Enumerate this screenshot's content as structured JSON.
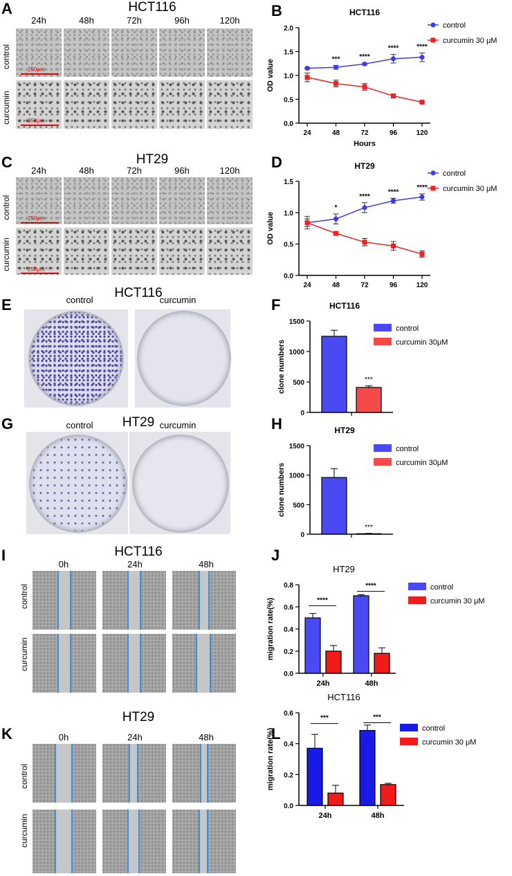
{
  "panels": {
    "A": {
      "letter": "A",
      "title": "HCT116",
      "times": [
        "24h",
        "48h",
        "72h",
        "96h",
        "120h"
      ],
      "rows": [
        "control",
        "curcumin"
      ],
      "scale": "250μm"
    },
    "C": {
      "letter": "C",
      "title": "HT29",
      "times": [
        "24h",
        "48h",
        "72h",
        "96h",
        "120h"
      ],
      "rows": [
        "control",
        "curcumin"
      ],
      "scale": "250μm"
    },
    "E": {
      "letter": "E",
      "title": "HCT116",
      "labels": [
        "control",
        "curcumin"
      ]
    },
    "G": {
      "letter": "G",
      "title": "HT29",
      "labels": [
        "control",
        "curcumin"
      ]
    },
    "I": {
      "letter": "I",
      "title": "HCT116",
      "times": [
        "0h",
        "24h",
        "48h"
      ],
      "rows": [
        "control",
        "curcumin"
      ]
    },
    "K": {
      "letter": "K",
      "title": "HT29",
      "times": [
        "0h",
        "24h",
        "48h"
      ],
      "rows": [
        "control",
        "curcumin"
      ]
    }
  },
  "chart_data": [
    {
      "id": "B",
      "letter": "B",
      "type": "line",
      "title": "HCT116",
      "xlabel": "Hours",
      "ylabel": "OD value",
      "x": [
        24,
        48,
        72,
        96,
        120
      ],
      "ylim": [
        0,
        2.0
      ],
      "yticks": [
        0.0,
        0.5,
        1.0,
        1.5,
        2.0
      ],
      "yfmt": 1,
      "series": [
        {
          "name": "control",
          "color": "#3a3af0",
          "marker": "circle",
          "values": [
            1.15,
            1.17,
            1.24,
            1.35,
            1.38
          ],
          "err": [
            0.02,
            0.04,
            0.02,
            0.09,
            0.09
          ]
        },
        {
          "name": "curcumin 30 μM",
          "color": "#f02020",
          "marker": "square",
          "values": [
            0.96,
            0.83,
            0.76,
            0.57,
            0.44
          ],
          "err": [
            0.09,
            0.07,
            0.07,
            0.04,
            0.02
          ]
        }
      ],
      "annotations": [
        {
          "x": 48,
          "text": "***"
        },
        {
          "x": 72,
          "text": "****"
        },
        {
          "x": 96,
          "text": "****"
        },
        {
          "x": 120,
          "text": "****"
        }
      ],
      "legend": "right"
    },
    {
      "id": "D",
      "letter": "D",
      "type": "line",
      "title": "HT29",
      "xlabel": "",
      "ylabel": "OD value",
      "x": [
        24,
        48,
        72,
        96,
        120
      ],
      "ylim": [
        0,
        1.5
      ],
      "yticks": [
        0.0,
        0.5,
        1.0,
        1.5
      ],
      "yfmt": 1,
      "series": [
        {
          "name": "control",
          "color": "#3a3af0",
          "marker": "circle",
          "values": [
            0.84,
            0.9,
            1.08,
            1.19,
            1.25
          ],
          "err": [
            0.1,
            0.08,
            0.08,
            0.04,
            0.05
          ]
        },
        {
          "name": "curcumin 30 μM",
          "color": "#f02020",
          "marker": "square",
          "values": [
            0.84,
            0.67,
            0.53,
            0.47,
            0.34
          ],
          "err": [
            0.06,
            0.02,
            0.06,
            0.07,
            0.05
          ]
        }
      ],
      "annotations": [
        {
          "x": 48,
          "text": "*"
        },
        {
          "x": 72,
          "text": "****"
        },
        {
          "x": 96,
          "text": "****"
        },
        {
          "x": 120,
          "text": "****"
        }
      ],
      "legend": "right"
    },
    {
      "id": "F",
      "letter": "F",
      "type": "bar",
      "title": "HCT116",
      "ylabel": "clone numbers",
      "categories": [
        ""
      ],
      "ylim": [
        0,
        1500
      ],
      "yticks": [
        0,
        500,
        1000,
        1500
      ],
      "yfmt": 0,
      "series": [
        {
          "name": "control",
          "color": "#4a4af5",
          "values": [
            1250
          ],
          "err": [
            100
          ]
        },
        {
          "name": "curcumin 30μM",
          "color": "#f54a4a",
          "values": [
            410
          ],
          "err": [
            25
          ]
        }
      ],
      "annotations": [
        {
          "series": 1,
          "cat": 0,
          "text": "***"
        }
      ],
      "legend": "right"
    },
    {
      "id": "H",
      "letter": "H",
      "type": "bar",
      "title": "HT29",
      "ylabel": "clone numbers",
      "categories": [
        ""
      ],
      "ylim": [
        0,
        1500
      ],
      "yticks": [
        0,
        500,
        1000,
        1500
      ],
      "yfmt": 0,
      "series": [
        {
          "name": "control",
          "color": "#4a4af5",
          "values": [
            960
          ],
          "err": [
            150
          ]
        },
        {
          "name": "curcumin 30μM",
          "color": "#f54a4a",
          "values": [
            8
          ],
          "err": [
            6
          ]
        }
      ],
      "annotations": [
        {
          "series": 1,
          "cat": 0,
          "text": "***"
        }
      ],
      "legend": "right"
    },
    {
      "id": "J",
      "letter": "J",
      "type": "bar",
      "title": "HT29",
      "ylabel": "migration rate(%)",
      "categories": [
        "24h",
        "48h"
      ],
      "ylim": [
        0,
        0.8
      ],
      "yticks": [
        0.0,
        0.2,
        0.4,
        0.6,
        0.8
      ],
      "yfmt": 1,
      "series": [
        {
          "name": "control",
          "color": "#4a4af5",
          "values": [
            0.5,
            0.7
          ],
          "err": [
            0.04,
            0.01
          ]
        },
        {
          "name": "curcumin 30 μM",
          "color": "#f21b1b",
          "values": [
            0.2,
            0.18
          ],
          "err": [
            0.05,
            0.05
          ]
        }
      ],
      "brackets": [
        {
          "cat": 0,
          "text": "****",
          "y": 0.61
        },
        {
          "cat": 1,
          "text": "****",
          "y": 0.74
        }
      ],
      "legend": "right"
    },
    {
      "id": "L",
      "letter": "L",
      "type": "bar",
      "title": "HCT116",
      "ylabel": "migration rate(%)",
      "categories": [
        "24h",
        "48h"
      ],
      "ylim": [
        0,
        0.6
      ],
      "yticks": [
        0.0,
        0.2,
        0.4,
        0.6
      ],
      "yfmt": 1,
      "series": [
        {
          "name": "control",
          "color": "#1a1ae6",
          "values": [
            0.37,
            0.485
          ],
          "err": [
            0.09,
            0.035
          ]
        },
        {
          "name": "curcumin 30 μM",
          "color": "#f21b1b",
          "values": [
            0.08,
            0.135
          ],
          "err": [
            0.05,
            0.008
          ]
        }
      ],
      "brackets": [
        {
          "cat": 0,
          "text": "***",
          "y": 0.53
        },
        {
          "cat": 1,
          "text": "***",
          "y": 0.535
        }
      ],
      "legend": "right"
    }
  ]
}
